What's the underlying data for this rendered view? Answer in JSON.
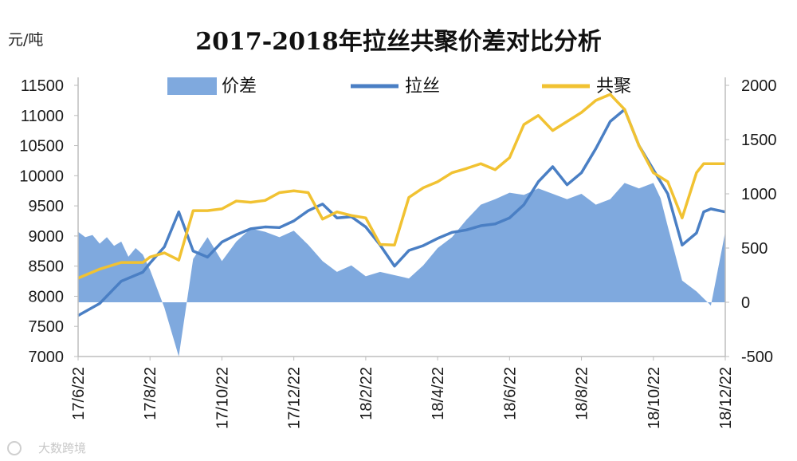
{
  "chart_data": {
    "type": "area+line",
    "title": "2017-2018年拉丝共聚价差对比分析",
    "y_left_label": "元/吨",
    "y_left": {
      "min": 7000,
      "max": 11500,
      "ticks": [
        "11500",
        "11000",
        "10500",
        "10000",
        "9500",
        "9000",
        "8500",
        "8000",
        "7500",
        "7000"
      ]
    },
    "y_right": {
      "min": -500,
      "max": 2000,
      "ticks": [
        "2000",
        "1500",
        "1000",
        "500",
        "0",
        "-500"
      ]
    },
    "x_ticks": [
      "17/6/22",
      "17/8/22",
      "17/10/22",
      "17/12/22",
      "18/2/22",
      "18/4/22",
      "18/6/22",
      "18/8/22",
      "18/10/22",
      "18/12/22"
    ],
    "legend": [
      "价差",
      "拉丝",
      "共聚"
    ],
    "colors": {
      "spread": "#7fa9de",
      "lasi": "#4a7fc4",
      "gongju": "#f1c232"
    },
    "series": [
      {
        "name": "价差",
        "axis": "right",
        "type": "area",
        "x": [
          0,
          0.1,
          0.2,
          0.3,
          0.4,
          0.5,
          0.6,
          0.7,
          0.8,
          0.9,
          1.0,
          1.2,
          1.4,
          1.6,
          1.8,
          2.0,
          2.2,
          2.4,
          2.6,
          2.8,
          3.0,
          3.2,
          3.4,
          3.6,
          3.8,
          4.0,
          4.2,
          4.4,
          4.6,
          4.8,
          5.0,
          5.2,
          5.4,
          5.6,
          5.8,
          6.0,
          6.2,
          6.4,
          6.6,
          6.8,
          7.0,
          7.2,
          7.4,
          7.6,
          7.8,
          8.0,
          8.1,
          8.2,
          8.4,
          8.6,
          8.8,
          9.0
        ],
        "y": [
          650,
          600,
          620,
          540,
          600,
          520,
          560,
          420,
          500,
          440,
          300,
          -50,
          -500,
          400,
          600,
          380,
          560,
          680,
          650,
          600,
          660,
          530,
          380,
          280,
          340,
          240,
          280,
          250,
          220,
          340,
          500,
          600,
          760,
          900,
          950,
          1010,
          990,
          1050,
          1000,
          950,
          1000,
          900,
          950,
          1100,
          1050,
          1100,
          960,
          700,
          200,
          100,
          -30,
          650
        ]
      },
      {
        "name": "拉丝",
        "axis": "left",
        "type": "line",
        "x": [
          0,
          0.3,
          0.6,
          0.9,
          1.0,
          1.2,
          1.4,
          1.6,
          1.8,
          2.0,
          2.2,
          2.4,
          2.6,
          2.8,
          3.0,
          3.2,
          3.4,
          3.6,
          3.8,
          4.0,
          4.2,
          4.4,
          4.6,
          4.8,
          5.0,
          5.2,
          5.4,
          5.6,
          5.8,
          6.0,
          6.2,
          6.4,
          6.6,
          6.8,
          7.0,
          7.2,
          7.4,
          7.6,
          7.8,
          8.0,
          8.2,
          8.4,
          8.6,
          8.7,
          8.8,
          9.0
        ],
        "y": [
          7680,
          7880,
          8250,
          8400,
          8550,
          8820,
          9400,
          8750,
          8650,
          8900,
          9020,
          9120,
          9150,
          9140,
          9250,
          9420,
          9530,
          9300,
          9320,
          9150,
          8850,
          8500,
          8760,
          8840,
          8960,
          9060,
          9100,
          9170,
          9200,
          9300,
          9520,
          9900,
          10150,
          9850,
          10050,
          10450,
          10900,
          11100,
          10500,
          10100,
          9700,
          8850,
          9050,
          9400,
          9450,
          9400
        ]
      },
      {
        "name": "共聚",
        "axis": "left",
        "type": "line",
        "x": [
          0,
          0.3,
          0.6,
          0.9,
          1.0,
          1.2,
          1.4,
          1.6,
          1.8,
          2.0,
          2.2,
          2.4,
          2.6,
          2.8,
          3.0,
          3.2,
          3.4,
          3.6,
          3.8,
          4.0,
          4.2,
          4.4,
          4.6,
          4.8,
          5.0,
          5.2,
          5.4,
          5.6,
          5.8,
          6.0,
          6.2,
          6.4,
          6.6,
          6.8,
          7.0,
          7.2,
          7.4,
          7.6,
          7.8,
          8.0,
          8.2,
          8.4,
          8.6,
          8.7,
          8.8,
          9.0
        ],
        "y": [
          8300,
          8450,
          8560,
          8560,
          8650,
          8720,
          8600,
          9420,
          9420,
          9450,
          9580,
          9560,
          9590,
          9720,
          9750,
          9720,
          9280,
          9400,
          9340,
          9300,
          8860,
          8850,
          9640,
          9800,
          9900,
          10050,
          10120,
          10200,
          10100,
          10300,
          10850,
          11000,
          10750,
          10900,
          11050,
          11250,
          11350,
          11100,
          10500,
          10050,
          9900,
          9300,
          10050,
          10200,
          10200,
          10200
        ]
      }
    ],
    "grid": false,
    "legend_position": "top"
  },
  "watermark": "大数跨境"
}
